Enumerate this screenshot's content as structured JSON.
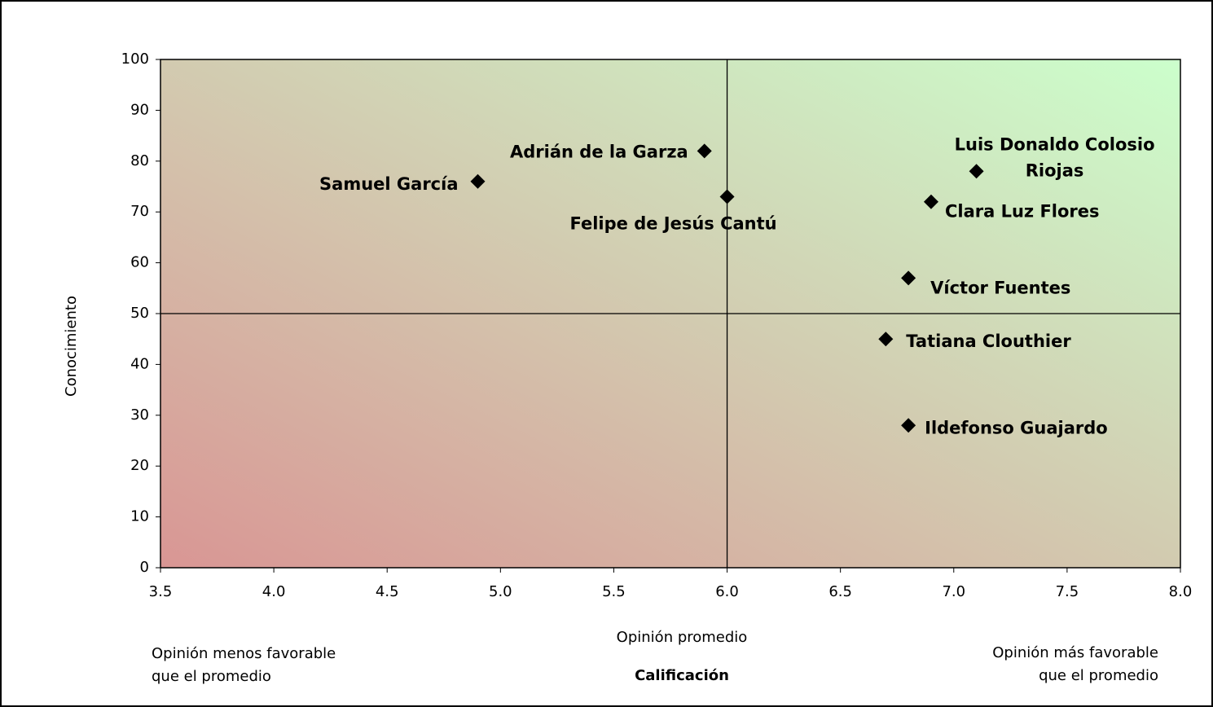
{
  "chart_data": {
    "type": "scatter",
    "x_label": "Calificación",
    "y_label": "Conocimiento",
    "annotations": {
      "left": [
        "Opinión menos favorable",
        "que el promedio"
      ],
      "center": "Opinión promedio",
      "right": [
        "Opinión más favorable",
        "que el promedio"
      ]
    },
    "series": [
      {
        "color": "#000000",
        "labels": [
          [
            "Samuel García"
          ],
          [
            "Adrián de la Garza"
          ],
          [
            "Felipe de Jesús Cantú"
          ],
          [
            "Luis Donaldo Colosio",
            "Riojas"
          ],
          [
            "Clara Luz Flores"
          ],
          [
            "Víctor Fuentes"
          ],
          [
            "Tatiana Clouthier"
          ],
          [
            "Ildefonso Guajardo"
          ]
        ],
        "x": [
          4.9,
          5.9,
          6.0,
          7.1,
          6.9,
          6.8,
          6.7,
          6.8
        ],
        "values": [
          76,
          82,
          73,
          78,
          72,
          57,
          45,
          28
        ]
      }
    ],
    "xlim": [
      3.5,
      8.0
    ],
    "xticks": [
      3.5,
      {
        "value": 4,
        "label": "4.0"
      },
      4.5,
      {
        "value": 5,
        "label": "5.0"
      },
      5.5,
      {
        "value": 6,
        "label": "6.0"
      },
      6.5,
      {
        "value": 7,
        "label": "7.0"
      },
      7.5,
      {
        "value": 8,
        "label": "8.0"
      }
    ],
    "ylim": [
      0,
      100
    ],
    "yticks": [
      0,
      10,
      20,
      30,
      40,
      50,
      60,
      70,
      80,
      90,
      100
    ],
    "reference_lines": {
      "x": 6.0,
      "y": 50
    },
    "background_gradient": [
      "#d99694",
      "#ccffcc"
    ]
  }
}
